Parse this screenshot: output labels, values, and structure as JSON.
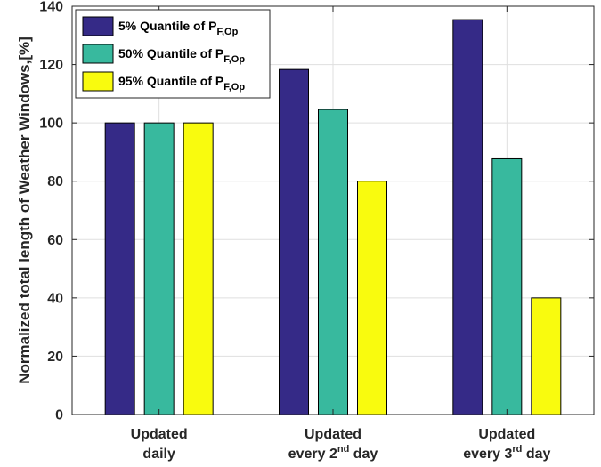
{
  "chart_data": {
    "type": "bar",
    "categories": [
      {
        "lines": [
          {
            "text": "Updated"
          },
          {
            "text": "daily"
          }
        ]
      },
      {
        "lines": [
          {
            "text": "Updated"
          },
          {
            "text": "every 2",
            "sup": "nd",
            "after": " day"
          }
        ]
      },
      {
        "lines": [
          {
            "text": "Updated"
          },
          {
            "text": "every 3",
            "sup": "rd",
            "after": " day"
          }
        ]
      }
    ],
    "series": [
      {
        "name": "5% Quantile of P",
        "name_sub": "F,Op",
        "color": "#352A87",
        "values": [
          100,
          118.3,
          135.4
        ]
      },
      {
        "name": "50% Quantile of P",
        "name_sub": "F,Op",
        "color": "#38B99E",
        "values": [
          100,
          104.6,
          87.7
        ]
      },
      {
        "name": "95% Quantile of P",
        "name_sub": "F,Op",
        "color": "#F9FB0E",
        "values": [
          100,
          80,
          40
        ]
      }
    ],
    "ylabel": "Normalized total length of Weather Windows,[%]",
    "xlabel": "",
    "ylim": [
      0,
      140
    ],
    "yticks": [
      "0",
      "20",
      "40",
      "60",
      "80",
      "100",
      "120",
      "140"
    ],
    "grid": true,
    "legend_position": "top-left"
  }
}
